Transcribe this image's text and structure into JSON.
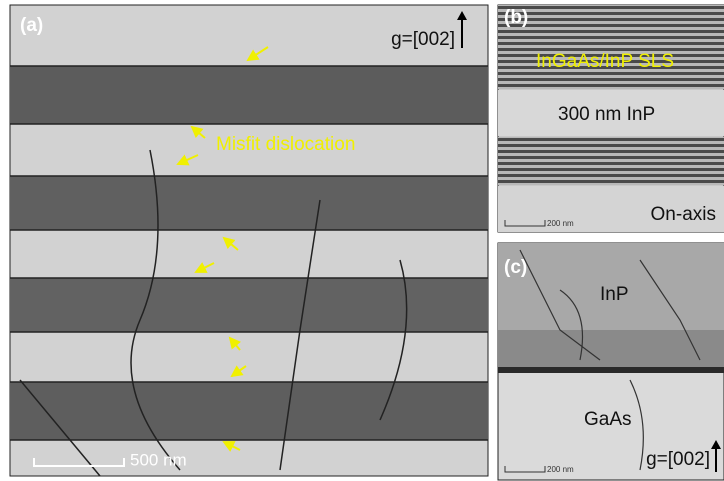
{
  "panels": [
    {
      "label": "(a)",
      "g_vector": "g=[002]",
      "annotation": "Misfit dislocation",
      "scale_bar": "500 nm"
    },
    {
      "label": "(b)",
      "layer_top": "InGaAs/InP SLS",
      "layer_middle": "300 nm InP",
      "orientation": "On-axis",
      "scale_bar": "200 nm"
    },
    {
      "label": "(c)",
      "layer_top": "InP",
      "layer_bottom": "GaAs",
      "g_vector": "g=[002]",
      "scale_bar": "200 nm"
    }
  ]
}
